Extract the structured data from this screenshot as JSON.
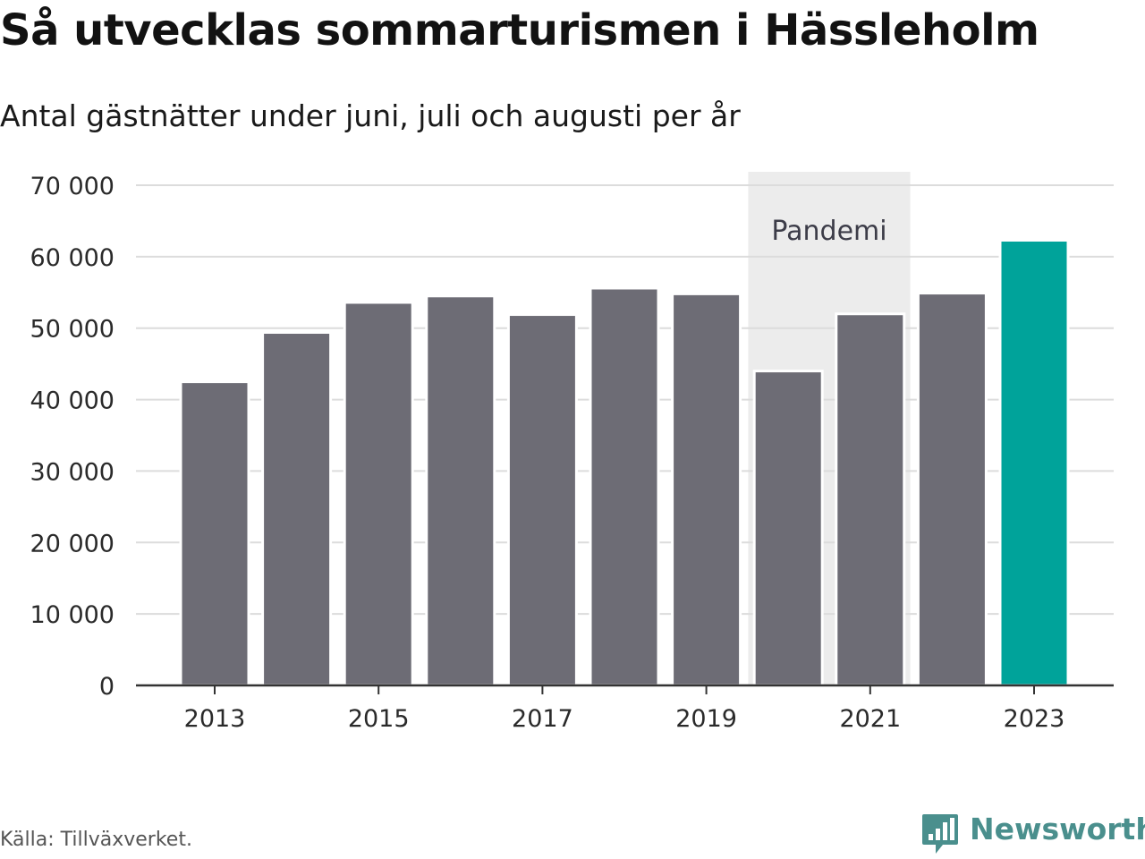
{
  "title": "Så utvecklas sommarturismen i Hässleholm",
  "subtitle": "Antal gästnätter under juni, juli och augusti per år",
  "source": "Källa: Tillväxverket.",
  "brand": {
    "name": "Newsworthy",
    "icon": "newsworthy-chart-icon"
  },
  "colors": {
    "bar": "#6d6c75",
    "highlight": "#00a39a",
    "grid": "#dcdcdc",
    "band": "#ececec",
    "axis": "#333333",
    "brand": "#4a8f8d"
  },
  "chart_data": {
    "type": "bar",
    "categories": [
      "2013",
      "2014",
      "2015",
      "2016",
      "2017",
      "2018",
      "2019",
      "2020",
      "2021",
      "2022",
      "2023"
    ],
    "values": [
      42500,
      49400,
      53600,
      54500,
      51900,
      55600,
      54800,
      44000,
      52000,
      54900,
      62300
    ],
    "highlight": "2023",
    "ylim": [
      0,
      70000
    ],
    "yticks": [
      0,
      10000,
      20000,
      30000,
      40000,
      50000,
      60000,
      70000
    ],
    "ytick_labels": [
      "0",
      "10 000",
      "20 000",
      "30 000",
      "40 000",
      "50 000",
      "60 000",
      "70 000"
    ],
    "xtick_labels": [
      "2013",
      "2015",
      "2017",
      "2019",
      "2021",
      "2023"
    ],
    "grid": true,
    "annotations": [
      {
        "type": "band",
        "label": "Pandemi",
        "from": "2020",
        "to": "2021"
      }
    ]
  }
}
